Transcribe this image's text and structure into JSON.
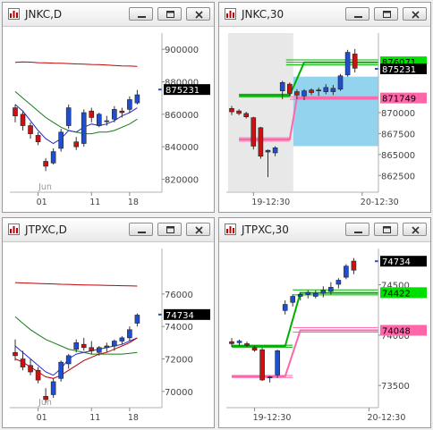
{
  "windows": [
    {
      "title": "JNKC,D",
      "chart_data": {
        "type": "candlestick",
        "symbol": "JNKC",
        "interval": "D",
        "ylim": [
          812000,
          910000
        ],
        "y_ticks": [
          "900000",
          "880000",
          "860000",
          "840000",
          "820000"
        ],
        "y_tick_values": [
          900000,
          880000,
          860000,
          840000,
          820000
        ],
        "x_ticks": [
          {
            "label": "01",
            "i": 3
          },
          {
            "label": "11",
            "i": 10
          },
          {
            "label": "18",
            "i": 15
          }
        ],
        "x_month_label": {
          "text": "Jun",
          "i": 4
        },
        "last_price": "875231",
        "last_price_value": 875231,
        "candles": [
          [
            864000,
            866000,
            855000,
            859000
          ],
          [
            860000,
            862000,
            850000,
            853000
          ],
          [
            853000,
            855000,
            845000,
            848000
          ],
          [
            847000,
            849000,
            841000,
            843000
          ],
          [
            831000,
            833000,
            825000,
            828000
          ],
          [
            830000,
            839000,
            829000,
            837000
          ],
          [
            839000,
            851000,
            837000,
            849000
          ],
          [
            853000,
            866000,
            851000,
            864000
          ],
          [
            843000,
            846000,
            838000,
            840000
          ],
          [
            842000,
            863000,
            840000,
            861000
          ],
          [
            862000,
            864000,
            855000,
            858000
          ],
          [
            853000,
            861000,
            852000,
            860000
          ],
          [
            856000,
            859000,
            853000,
            856000
          ],
          [
            857000,
            865000,
            855000,
            863000
          ],
          [
            862000,
            864000,
            858000,
            861000
          ],
          [
            863000,
            871000,
            861000,
            869000
          ],
          [
            867000,
            875000,
            866000,
            872000
          ]
        ],
        "series": [
          {
            "color": "#c00000",
            "values": [
              892000,
              892200,
              892100,
              891800,
              891700,
              891500,
              891400,
              891200,
              891000,
              890900,
              890700,
              890600,
              890300,
              890000,
              889800,
              889700,
              889500
            ]
          },
          {
            "color": "#1a7a1a",
            "values": [
              874000,
              870000,
              866000,
              862000,
              858000,
              855000,
              852000,
              850000,
              849000,
              848000,
              848000,
              849000,
              849000,
              850000,
              852000,
              854000,
              857000
            ]
          },
          {
            "color": "#1f2fbf",
            "values": [
              866000,
              862000,
              856000,
              850000,
              845000,
              842000,
              845000,
              850000,
              849000,
              852000,
              854000,
              853000,
              854000,
              856000,
              859000,
              861000,
              864000
            ]
          }
        ]
      }
    },
    {
      "title": "JNKC,30",
      "chart_data": {
        "type": "candlestick",
        "symbol": "JNKC",
        "interval": "30",
        "ylim": [
          860500,
          879500
        ],
        "y_ticks": [
          "870000",
          "867500",
          "865000",
          "862500"
        ],
        "y_tick_values": [
          870000,
          867500,
          865000,
          862500
        ],
        "x_ticks": [
          {
            "label": "19-12:30",
            "i": 3
          },
          {
            "label": "20-12:30",
            "i": 18
          }
        ],
        "price_tags": [
          {
            "value": 876071,
            "text": "876071",
            "bg": "#00e000",
            "fg": "#000000"
          },
          {
            "value": 875231,
            "text": "875231",
            "bg": "#000000",
            "fg": "#ffffff"
          },
          {
            "value": 871749,
            "text": "871749",
            "bg": "#ff66aa",
            "fg": "#000000"
          }
        ],
        "last_price_value": 875231,
        "zones": [
          {
            "from_i": -0.5,
            "to_i": 8.5,
            "y_from": 860600,
            "y_to": 879500,
            "color": "#d8d8d8",
            "opacity": 0.6
          },
          {
            "from_i": 8.5,
            "to_i": 24.5,
            "y_from": 866000,
            "y_to": 874300,
            "color": "#87ceeb",
            "opacity": 0.9
          }
        ],
        "hlines": [
          {
            "from_i": 7.5,
            "to_i": 24.5,
            "value": 876300,
            "color": "#00b000"
          },
          {
            "from_i": 7.5,
            "to_i": 24.5,
            "value": 876000,
            "color": "#00b000"
          },
          {
            "from_i": 7.5,
            "to_i": 24.5,
            "value": 875700,
            "color": "#00b000"
          },
          {
            "from_i": 1,
            "to_i": 8,
            "value": 872200,
            "color": "#00b000"
          },
          {
            "from_i": 1,
            "to_i": 8,
            "value": 871900,
            "color": "#00b000"
          },
          {
            "from_i": 8,
            "to_i": 24.5,
            "value": 871900,
            "color": "#ff66aa"
          },
          {
            "from_i": 8,
            "to_i": 24.5,
            "value": 871600,
            "color": "#ff66aa"
          },
          {
            "from_i": 1,
            "to_i": 8,
            "value": 867000,
            "color": "#ff66aa"
          },
          {
            "from_i": 1,
            "to_i": 8,
            "value": 866600,
            "color": "#ff66aa"
          }
        ],
        "steps": [
          {
            "color": "#00b000",
            "points": [
              [
                1,
                872050
              ],
              [
                8,
                872050
              ],
              [
                10,
                876000
              ],
              [
                24.5,
                876000
              ]
            ]
          },
          {
            "color": "#ff66aa",
            "points": [
              [
                1,
                866800
              ],
              [
                8,
                866800
              ],
              [
                9,
                871750
              ],
              [
                24.5,
                871750
              ]
            ]
          }
        ],
        "candles": [
          [
            870500,
            870800,
            869700,
            870100
          ],
          [
            870200,
            870400,
            869700,
            869900
          ],
          [
            869900,
            870100,
            869300,
            869500
          ],
          [
            869400,
            869500,
            865600,
            866000
          ],
          [
            868200,
            868300,
            864500,
            864800
          ],
          [
            865300,
            865600,
            862300,
            865500
          ],
          [
            865200,
            866000,
            864800,
            865800
          ],
          [
            872600,
            873800,
            871600,
            873600
          ],
          [
            873400,
            873600,
            872000,
            872300
          ],
          [
            872500,
            872800,
            871600,
            872100
          ],
          [
            872000,
            872800,
            871500,
            872600
          ],
          [
            872700,
            872900,
            872100,
            872400
          ],
          [
            872600,
            873000,
            872000,
            872700
          ],
          [
            872500,
            873400,
            872200,
            873000
          ],
          [
            872500,
            873300,
            872100,
            872900
          ],
          [
            872800,
            874600,
            872600,
            874400
          ],
          [
            874500,
            877500,
            874300,
            877200
          ],
          [
            877000,
            877600,
            874800,
            875300
          ]
        ]
      }
    },
    {
      "title": "JTPXC,D",
      "chart_data": {
        "type": "candlestick",
        "symbol": "JTPXC",
        "interval": "D",
        "ylim": [
          69000,
          78800
        ],
        "y_ticks": [
          "76000",
          "74000",
          "72000",
          "70000"
        ],
        "y_tick_values": [
          76000,
          74000,
          72000,
          70000
        ],
        "x_ticks": [
          {
            "label": "01",
            "i": 3
          },
          {
            "label": "11",
            "i": 10
          },
          {
            "label": "18",
            "i": 15
          }
        ],
        "x_month_label": {
          "text": "Jun",
          "i": 4
        },
        "last_price": "74734",
        "last_price_value": 74734,
        "candles": [
          [
            72400,
            73200,
            71900,
            72200
          ],
          [
            72000,
            72500,
            71300,
            71500
          ],
          [
            71600,
            72000,
            71000,
            71200
          ],
          [
            71300,
            71500,
            70500,
            70700
          ],
          [
            69700,
            70200,
            69300,
            69500
          ],
          [
            69800,
            70800,
            69600,
            70600
          ],
          [
            70800,
            71900,
            70600,
            71800
          ],
          [
            71700,
            72300,
            71400,
            72200
          ],
          [
            72600,
            73200,
            72400,
            73000
          ],
          [
            72900,
            73300,
            72500,
            72700
          ],
          [
            72700,
            73100,
            72300,
            72500
          ],
          [
            72400,
            72800,
            72200,
            72700
          ],
          [
            72700,
            73000,
            72400,
            72800
          ],
          [
            72800,
            73200,
            72500,
            73100
          ],
          [
            73100,
            73400,
            72900,
            73300
          ],
          [
            73300,
            74000,
            73100,
            73800
          ],
          [
            74200,
            74800,
            74000,
            74700
          ]
        ],
        "series": [
          {
            "color": "#c00000",
            "values": [
              76700,
              76680,
              76670,
              76650,
              76630,
              76620,
              76600,
              76590,
              76570,
              76560,
              76550,
              76540,
              76530,
              76520,
              76510,
              76500,
              76490
            ]
          },
          {
            "color": "#1a7a1a",
            "values": [
              74600,
              74200,
              73800,
              73500,
              73200,
              73000,
              72800,
              72600,
              72500,
              72400,
              72300,
              72300,
              72300,
              72300,
              72300,
              72350,
              72400
            ]
          },
          {
            "color": "#1f2fbf",
            "values": [
              72800,
              72400,
              72000,
              71600,
              71200,
              71000,
              71400,
              72000,
              72300,
              72400,
              72500,
              72600,
              72700,
              72800,
              72900,
              73100,
              73300
            ]
          },
          {
            "color": "#c00000",
            "values": [
              72000,
              71800,
              71500,
              71200,
              70900,
              70800,
              71000,
              71300,
              71600,
              71900,
              72100,
              72300,
              72400,
              72600,
              72800,
              73000,
              73300
            ]
          }
        ]
      }
    },
    {
      "title": "JTPXC,30",
      "chart_data": {
        "type": "candlestick",
        "symbol": "JTPXC",
        "interval": "30",
        "ylim": [
          73280,
          74860
        ],
        "y_ticks": [
          "74500",
          "74000",
          "73500"
        ],
        "y_tick_values": [
          74500,
          74000,
          73500
        ],
        "x_ticks": [
          {
            "label": "19-12:30",
            "i": 3
          },
          {
            "label": "20-12:30",
            "i": 18
          }
        ],
        "price_tags": [
          {
            "value": 74734,
            "text": "74734",
            "bg": "#000000",
            "fg": "#ffffff"
          },
          {
            "value": 74422,
            "text": "74422",
            "bg": "#00e000",
            "fg": "#000000"
          },
          {
            "value": 74048,
            "text": "74048",
            "bg": "#ff66aa",
            "fg": "#000000"
          }
        ],
        "last_price_value": 74734,
        "hlines": [
          {
            "from_i": 0,
            "to_i": 8,
            "value": 73900,
            "color": "#00b000"
          },
          {
            "from_i": 0,
            "to_i": 8,
            "value": 73880,
            "color": "#00b000"
          },
          {
            "from_i": 8,
            "to_i": 24,
            "value": 74450,
            "color": "#00b000"
          },
          {
            "from_i": 8,
            "to_i": 24,
            "value": 74400,
            "color": "#00b000"
          },
          {
            "from_i": 0,
            "to_i": 8,
            "value": 73600,
            "color": "#ff66aa"
          },
          {
            "from_i": 0,
            "to_i": 8,
            "value": 73580,
            "color": "#ff66aa"
          },
          {
            "from_i": 8,
            "to_i": 24,
            "value": 74075,
            "color": "#ff66aa"
          },
          {
            "from_i": 8,
            "to_i": 24,
            "value": 74030,
            "color": "#ff66aa"
          }
        ],
        "steps": [
          {
            "color": "#00b000",
            "points": [
              [
                0,
                73890
              ],
              [
                7,
                73890
              ],
              [
                9,
                74420
              ],
              [
                24,
                74420
              ]
            ]
          },
          {
            "color": "#ff66aa",
            "points": [
              [
                0,
                73590
              ],
              [
                7,
                73590
              ],
              [
                9,
                74048
              ],
              [
                24,
                74048
              ]
            ]
          }
        ],
        "candles": [
          [
            73935,
            73970,
            73885,
            73915
          ],
          [
            73925,
            73955,
            73895,
            73940
          ],
          [
            73915,
            73935,
            73880,
            73900
          ],
          [
            73875,
            73895,
            73835,
            73850
          ],
          [
            73855,
            73875,
            73545,
            73555
          ],
          [
            73575,
            73595,
            73530,
            73585
          ],
          [
            73605,
            73855,
            73575,
            73845
          ],
          [
            74245,
            74345,
            74205,
            74305
          ],
          [
            74325,
            74405,
            74285,
            74385
          ],
          [
            74385,
            74425,
            74345,
            74405
          ],
          [
            74405,
            74445,
            74365,
            74425
          ],
          [
            74385,
            74445,
            74365,
            74415
          ],
          [
            74415,
            74485,
            74375,
            74445
          ],
          [
            74435,
            74525,
            74405,
            74475
          ],
          [
            74505,
            74565,
            74465,
            74545
          ],
          [
            74575,
            74705,
            74555,
            74685
          ],
          [
            74735,
            74765,
            74605,
            74645
          ]
        ]
      }
    }
  ]
}
